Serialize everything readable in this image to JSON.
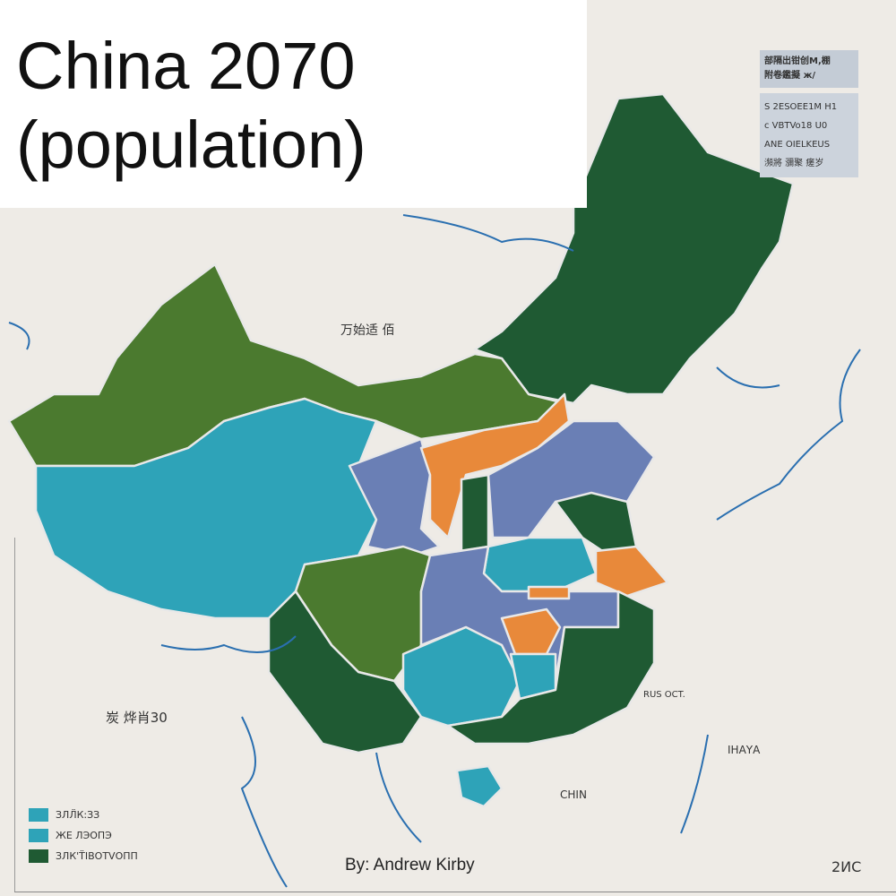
{
  "title": {
    "line1": "China 2070",
    "line2": "(population)"
  },
  "byline": "By: Andrew Kirby",
  "colors": {
    "background": "#eeebe6",
    "dark_green": "#1f5a33",
    "olive_green": "#4b7a2f",
    "teal": "#2ea3b8",
    "periwinkle": "#6a7fb5",
    "orange": "#e8893a",
    "river": "#2a6fb0"
  },
  "legend": {
    "items": [
      {
        "label": "ЗЛЛ̈К:ЗЗ",
        "color": "#2ea3b8"
      },
      {
        "label": "ЖЕ ЛЭОПЭ",
        "color": "#2ea3b8"
      },
      {
        "label": "ЗЛК'Т̈ІВОТVОПП",
        "color": "#1f5a33"
      }
    ]
  },
  "key_box": {
    "header": [
      "部隔出钳创M,棚",
      "附卷鑑擬 ж/"
    ],
    "rows": [
      "S 2ESOEE1M H1",
      "ϲ VBTVo18 U0",
      "ANE OIELKEUS",
      "瀕將 瀰聚 瘥岁"
    ]
  },
  "map_labels": [
    "万始适 佰",
    "炭 烨肖30",
    "CHIN",
    "ΙΗΑΥΑ",
    "RUS OCT.",
    "2ИС"
  ]
}
